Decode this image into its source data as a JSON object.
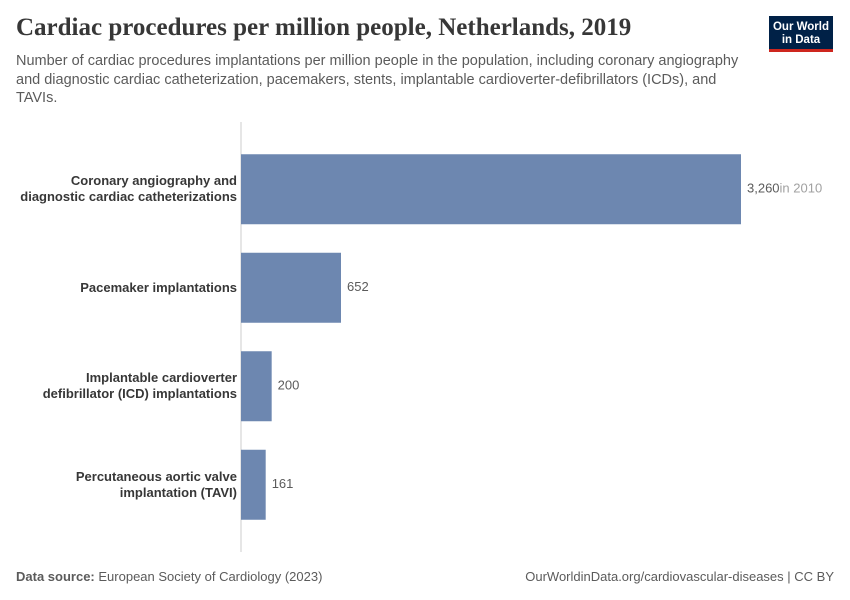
{
  "chart_data": {
    "type": "bar",
    "orientation": "horizontal",
    "title": "Cardiac procedures per million people, Netherlands, 2019",
    "subtitle": "Number of cardiac procedures implantations per million people in the population, including coronary angiography and diagnostic cardiac catheterization, pacemakers, stents, implantable cardioverter-defibrillators (ICDs), and TAVIs.",
    "categories": [
      "Coronary angiography and diagnostic cardiac catheterizations",
      "Pacemaker implantations",
      "Implantable cardioverter defibrillator (ICD) implantations",
      "Percutaneous aortic valve implantation (TAVI)"
    ],
    "values": [
      3260,
      652,
      200,
      161
    ],
    "value_labels": [
      "3,260",
      "652",
      "200",
      "161"
    ],
    "value_notes": [
      "in 2010",
      null,
      null,
      null
    ],
    "color": "#6d87b0",
    "xlim": [
      0,
      3260
    ],
    "source_label": "Data source:",
    "source": "European Society of Cardiology (2023)",
    "url": "OurWorldinData.org/cardiovascular-diseases | CC BY",
    "logo": [
      "Our World",
      "in Data"
    ]
  }
}
